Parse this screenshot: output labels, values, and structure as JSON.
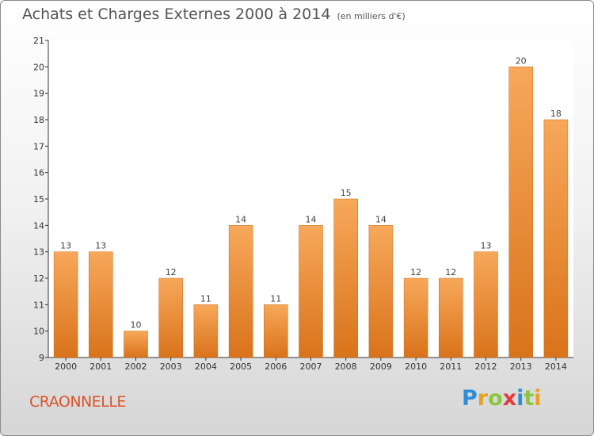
{
  "chart_data": {
    "type": "bar",
    "title": "Achats et Charges Externes 2000 à 2014",
    "subtitle": "(en milliers d'€)",
    "categories": [
      "2000",
      "2001",
      "2002",
      "2003",
      "2004",
      "2005",
      "2006",
      "2007",
      "2008",
      "2009",
      "2010",
      "2011",
      "2012",
      "2013",
      "2014"
    ],
    "values": [
      13,
      13,
      10,
      12,
      11,
      14,
      11,
      14,
      15,
      14,
      12,
      12,
      13,
      20,
      18
    ],
    "ylim": [
      9,
      21
    ],
    "yticks": [
      9,
      10,
      11,
      12,
      13,
      14,
      15,
      16,
      17,
      18,
      19,
      20,
      21
    ],
    "grid": false,
    "bar_color": "#f0892f"
  },
  "footer": {
    "commune": "CRAONNELLE",
    "logo": [
      "P",
      "r",
      "o",
      "x",
      "i",
      "t",
      "i"
    ],
    "logo_colors": [
      "#2f8fd6",
      "#e9a21f",
      "#8cc63f",
      "#e23b3b",
      "#2f8fd6",
      "#8cc63f",
      "#e9a21f"
    ]
  }
}
